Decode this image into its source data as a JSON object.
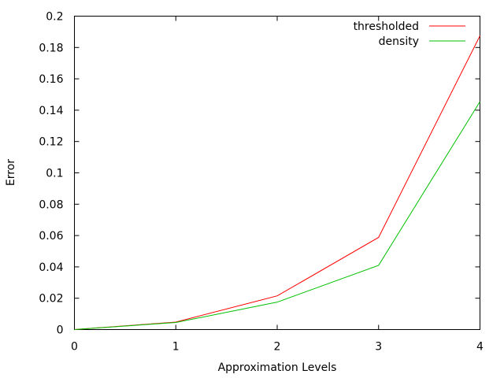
{
  "chart_data": {
    "type": "line",
    "xlabel": "Approximation Levels",
    "ylabel": "Error",
    "x": [
      0,
      1,
      2,
      3,
      4
    ],
    "xlim": [
      0,
      4
    ],
    "ylim": [
      0,
      0.2
    ],
    "x_ticks": [
      0,
      1,
      2,
      3,
      4
    ],
    "x_tick_labels": [
      "0",
      "1",
      "2",
      "3",
      "4"
    ],
    "y_ticks": [
      0,
      0.02,
      0.04,
      0.06,
      0.08,
      0.1,
      0.12,
      0.14,
      0.16,
      0.18,
      0.2
    ],
    "y_tick_labels": [
      "0",
      "0.02",
      "0.04",
      "0.06",
      "0.08",
      "0.1",
      "0.12",
      "0.14",
      "0.16",
      "0.18",
      "0.2"
    ],
    "grid": false,
    "legend_position": "top-right",
    "series": [
      {
        "name": "thresholded",
        "color": "#ff0000",
        "values": [
          0,
          0.0048,
          0.0215,
          0.0588,
          0.1875
        ]
      },
      {
        "name": "density",
        "color": "#00c000",
        "values": [
          0,
          0.0045,
          0.0175,
          0.041,
          0.1455
        ]
      }
    ]
  }
}
